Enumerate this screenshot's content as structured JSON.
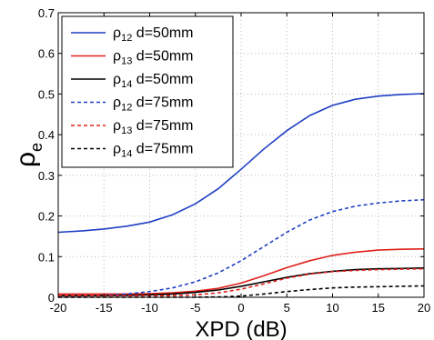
{
  "chart_data": {
    "type": "line",
    "xlabel": "XPD (dB)",
    "ylabel": "ρ",
    "ylabel_sub": "e",
    "xlim": [
      -20,
      20
    ],
    "ylim": [
      0,
      0.7
    ],
    "xticks": [
      "-20",
      "-15",
      "-10",
      "-5",
      "0",
      "5",
      "10",
      "15",
      "20"
    ],
    "yticks": [
      "0",
      "0.1",
      "0.2",
      "0.3",
      "0.4",
      "0.5",
      "0.6",
      "0.7"
    ],
    "grid": true,
    "legend_position": "top-left",
    "x": [
      -20,
      -17.5,
      -15,
      -12.5,
      -10,
      -7.5,
      -5,
      -2.5,
      0,
      2.5,
      5,
      7.5,
      10,
      12.5,
      15,
      17.5,
      20
    ],
    "series": [
      {
        "name": "ρ",
        "sub": "12",
        "suffix": " d=50mm",
        "color": "#1f3fc4",
        "dash": "solid",
        "values": [
          0.16,
          0.163,
          0.168,
          0.175,
          0.185,
          0.203,
          0.23,
          0.267,
          0.315,
          0.365,
          0.41,
          0.447,
          0.472,
          0.487,
          0.495,
          0.499,
          0.501
        ]
      },
      {
        "name": "ρ",
        "sub": "13",
        "suffix": " d=50mm",
        "color": "#e0201a",
        "dash": "solid",
        "values": [
          0.008,
          0.008,
          0.008,
          0.008,
          0.009,
          0.011,
          0.015,
          0.022,
          0.035,
          0.053,
          0.073,
          0.09,
          0.103,
          0.111,
          0.116,
          0.118,
          0.119
        ]
      },
      {
        "name": "ρ",
        "sub": "14",
        "suffix": " d=50mm",
        "color": "#000000",
        "dash": "solid",
        "values": [
          0.004,
          0.004,
          0.004,
          0.005,
          0.006,
          0.008,
          0.012,
          0.018,
          0.027,
          0.038,
          0.049,
          0.058,
          0.064,
          0.068,
          0.07,
          0.071,
          0.072
        ]
      },
      {
        "name": "ρ",
        "sub": "12",
        "suffix": " d=75mm",
        "color": "#1f3fc4",
        "dash": "dashed",
        "values": [
          0.002,
          0.003,
          0.005,
          0.008,
          0.014,
          0.023,
          0.038,
          0.06,
          0.09,
          0.125,
          0.16,
          0.19,
          0.211,
          0.224,
          0.232,
          0.237,
          0.24
        ]
      },
      {
        "name": "ρ",
        "sub": "13",
        "suffix": " d=75mm",
        "color": "#e0201a",
        "dash": "dashed",
        "values": [
          0.004,
          0.004,
          0.004,
          0.004,
          0.004,
          0.004,
          0.006,
          0.011,
          0.02,
          0.033,
          0.047,
          0.057,
          0.063,
          0.066,
          0.068,
          0.069,
          0.07
        ]
      },
      {
        "name": "ρ",
        "sub": "14",
        "suffix": " d=75mm",
        "color": "#000000",
        "dash": "dashed",
        "values": [
          0.0,
          0.0,
          0.0,
          0.0,
          0.0,
          0.0,
          0.0,
          0.001,
          0.003,
          0.008,
          0.014,
          0.019,
          0.023,
          0.025,
          0.026,
          0.027,
          0.028
        ]
      }
    ]
  }
}
